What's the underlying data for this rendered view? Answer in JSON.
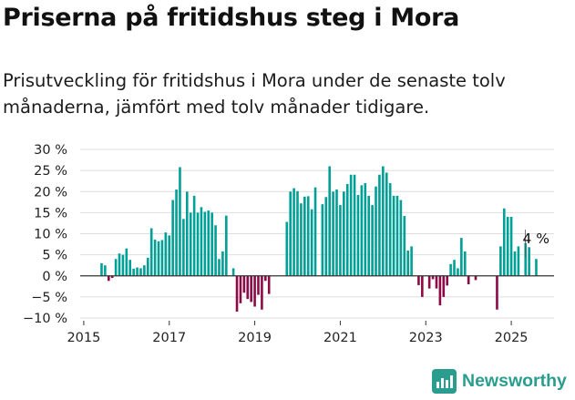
{
  "header": {
    "title": "Priserna på fritidshus steg i Mora",
    "subtitle": "Prisutveckling för fritidshus i Mora under de senaste tolv månaderna, jämfört med tolv månader tidigare."
  },
  "brand": {
    "name": "Newsworthy",
    "icon": "newsworthy-logo-icon"
  },
  "colors": {
    "positive": "#00a096",
    "negative": "#8c0a46",
    "grid": "#dedede",
    "axis": "#333333"
  },
  "chart_data": {
    "type": "bar",
    "title": "Priserna på fritidshus steg i Mora",
    "xlabel": "",
    "ylabel": "",
    "ylim": [
      -10,
      30
    ],
    "yticks": [
      -10,
      -5,
      0,
      5,
      10,
      15,
      20,
      25,
      30
    ],
    "ytick_labels": [
      "−10 %",
      "−5 %",
      "0 %",
      "5 %",
      "10 %",
      "15 %",
      "20 %",
      "25 %",
      "30 %"
    ],
    "x_domain": [
      "2014-12",
      "2026-01"
    ],
    "xticks": [
      {
        "label": "2015",
        "at": "2015-01"
      },
      {
        "label": "2017",
        "at": "2017-01"
      },
      {
        "label": "2019",
        "at": "2019-01"
      },
      {
        "label": "2021",
        "at": "2021-01"
      },
      {
        "label": "2023",
        "at": "2023-01"
      },
      {
        "label": "2025",
        "at": "2025-01"
      }
    ],
    "grid": true,
    "series": [
      {
        "values": [
          {
            "x": "2015-06",
            "y": 3.0
          },
          {
            "x": "2015-07",
            "y": 2.5
          },
          {
            "x": "2015-08",
            "y": -1.2
          },
          {
            "x": "2015-09",
            "y": -0.5
          },
          {
            "x": "2015-10",
            "y": 4.0
          },
          {
            "x": "2015-11",
            "y": 5.3
          },
          {
            "x": "2015-12",
            "y": 5.0
          },
          {
            "x": "2016-01",
            "y": 6.5
          },
          {
            "x": "2016-02",
            "y": 3.8
          },
          {
            "x": "2016-03",
            "y": 1.7
          },
          {
            "x": "2016-04",
            "y": 2.0
          },
          {
            "x": "2016-05",
            "y": 1.8
          },
          {
            "x": "2016-06",
            "y": 2.5
          },
          {
            "x": "2016-07",
            "y": 4.3
          },
          {
            "x": "2016-08",
            "y": 11.3
          },
          {
            "x": "2016-09",
            "y": 8.6
          },
          {
            "x": "2016-10",
            "y": 8.2
          },
          {
            "x": "2016-11",
            "y": 8.5
          },
          {
            "x": "2016-12",
            "y": 10.3
          },
          {
            "x": "2017-01",
            "y": 9.6
          },
          {
            "x": "2017-02",
            "y": 18.0
          },
          {
            "x": "2017-03",
            "y": 20.5
          },
          {
            "x": "2017-04",
            "y": 25.8
          },
          {
            "x": "2017-05",
            "y": 13.5
          },
          {
            "x": "2017-06",
            "y": 20.0
          },
          {
            "x": "2017-07",
            "y": 15.0
          },
          {
            "x": "2017-08",
            "y": 19.0
          },
          {
            "x": "2017-09",
            "y": 15.0
          },
          {
            "x": "2017-10",
            "y": 16.3
          },
          {
            "x": "2017-11",
            "y": 15.2
          },
          {
            "x": "2017-12",
            "y": 15.5
          },
          {
            "x": "2018-01",
            "y": 15.0
          },
          {
            "x": "2018-02",
            "y": 12.0
          },
          {
            "x": "2018-03",
            "y": 4.0
          },
          {
            "x": "2018-04",
            "y": 5.8
          },
          {
            "x": "2018-05",
            "y": 14.3
          },
          {
            "x": "2018-07",
            "y": 1.8
          },
          {
            "x": "2018-08",
            "y": -8.5
          },
          {
            "x": "2018-09",
            "y": -6.5
          },
          {
            "x": "2018-10",
            "y": -4.0
          },
          {
            "x": "2018-11",
            "y": -5.5
          },
          {
            "x": "2018-12",
            "y": -6.2
          },
          {
            "x": "2019-01",
            "y": -7.3
          },
          {
            "x": "2019-02",
            "y": -4.5
          },
          {
            "x": "2019-03",
            "y": -8.0
          },
          {
            "x": "2019-04",
            "y": -1.2
          },
          {
            "x": "2019-05",
            "y": -4.3
          },
          {
            "x": "2019-10",
            "y": 12.8
          },
          {
            "x": "2019-11",
            "y": 20.0
          },
          {
            "x": "2019-12",
            "y": 20.8
          },
          {
            "x": "2020-01",
            "y": 20.1
          },
          {
            "x": "2020-02",
            "y": 17.2
          },
          {
            "x": "2020-03",
            "y": 18.8
          },
          {
            "x": "2020-04",
            "y": 18.9
          },
          {
            "x": "2020-05",
            "y": 15.8
          },
          {
            "x": "2020-06",
            "y": 21.0
          },
          {
            "x": "2020-08",
            "y": 17.0
          },
          {
            "x": "2020-09",
            "y": 18.7
          },
          {
            "x": "2020-10",
            "y": 26.0
          },
          {
            "x": "2020-11",
            "y": 20.0
          },
          {
            "x": "2020-12",
            "y": 20.5
          },
          {
            "x": "2021-01",
            "y": 16.8
          },
          {
            "x": "2021-02",
            "y": 20.0
          },
          {
            "x": "2021-03",
            "y": 21.8
          },
          {
            "x": "2021-04",
            "y": 24.0
          },
          {
            "x": "2021-05",
            "y": 24.0
          },
          {
            "x": "2021-06",
            "y": 19.2
          },
          {
            "x": "2021-07",
            "y": 21.5
          },
          {
            "x": "2021-08",
            "y": 22.0
          },
          {
            "x": "2021-09",
            "y": 19.0
          },
          {
            "x": "2021-10",
            "y": 16.8
          },
          {
            "x": "2021-11",
            "y": 21.2
          },
          {
            "x": "2021-12",
            "y": 24.0
          },
          {
            "x": "2022-01",
            "y": 26.0
          },
          {
            "x": "2022-02",
            "y": 24.5
          },
          {
            "x": "2022-03",
            "y": 22.0
          },
          {
            "x": "2022-04",
            "y": 19.0
          },
          {
            "x": "2022-05",
            "y": 19.0
          },
          {
            "x": "2022-06",
            "y": 18.0
          },
          {
            "x": "2022-07",
            "y": 14.2
          },
          {
            "x": "2022-08",
            "y": 6.0
          },
          {
            "x": "2022-09",
            "y": 7.0
          },
          {
            "x": "2022-11",
            "y": -2.2
          },
          {
            "x": "2022-12",
            "y": -5.0
          },
          {
            "x": "2023-02",
            "y": -3.0
          },
          {
            "x": "2023-03",
            "y": -0.8
          },
          {
            "x": "2023-04",
            "y": -3.0
          },
          {
            "x": "2023-05",
            "y": -7.0
          },
          {
            "x": "2023-06",
            "y": -5.0
          },
          {
            "x": "2023-07",
            "y": -2.3
          },
          {
            "x": "2023-08",
            "y": 2.8
          },
          {
            "x": "2023-09",
            "y": 3.8
          },
          {
            "x": "2023-10",
            "y": 1.8
          },
          {
            "x": "2023-11",
            "y": 9.0
          },
          {
            "x": "2023-12",
            "y": 5.8
          },
          {
            "x": "2024-01",
            "y": -2.0
          },
          {
            "x": "2024-03",
            "y": -1.0
          },
          {
            "x": "2024-09",
            "y": -8.0
          },
          {
            "x": "2024-10",
            "y": 7.0
          },
          {
            "x": "2024-11",
            "y": 16.0
          },
          {
            "x": "2024-12",
            "y": 14.0
          },
          {
            "x": "2025-01",
            "y": 14.0
          },
          {
            "x": "2025-02",
            "y": 5.8
          },
          {
            "x": "2025-03",
            "y": 7.0
          },
          {
            "x": "2025-05",
            "y": 7.8
          },
          {
            "x": "2025-06",
            "y": 6.8
          },
          {
            "x": "2025-08",
            "y": 4.0
          }
        ]
      }
    ],
    "annotations": [
      {
        "text": "4 %",
        "x": "2025-08",
        "y": 4.0
      }
    ]
  }
}
